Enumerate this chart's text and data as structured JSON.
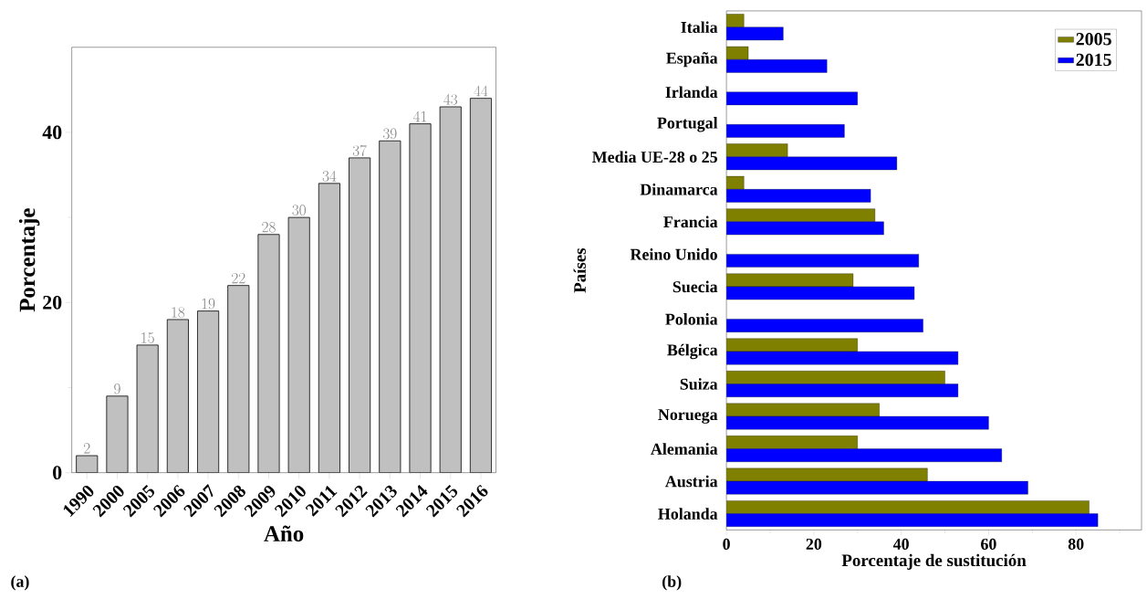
{
  "chart_data": [
    {
      "type": "bar",
      "xlabel": "Año",
      "ylabel": "Porcentaje",
      "categories": [
        "1990",
        "2000",
        "2005",
        "2006",
        "2007",
        "2008",
        "2009",
        "2010",
        "2011",
        "2012",
        "2013",
        "2014",
        "2015",
        "2016"
      ],
      "values": [
        2,
        9,
        15,
        18,
        19,
        22,
        28,
        30,
        34,
        37,
        39,
        41,
        43,
        44
      ],
      "color": "#c0c0c0",
      "data_labels": true,
      "grid": false,
      "legend": false,
      "ylim": [
        0,
        50
      ],
      "yticks": [
        0,
        {
          "value": 10,
          "label": null
        },
        20,
        {
          "value": 30,
          "label": null
        },
        40
      ],
      "annotations": [
        "(a)"
      ]
    },
    {
      "type": "bar",
      "orientation": "horizontal",
      "xlabel": "Porcentaje de sustitución",
      "ylabel": "Países",
      "categories": [
        "Italia",
        "España",
        "Irlanda",
        "Portugal",
        "Media UE-28 o 25",
        "Dinamarca",
        "Francia",
        "Reino Unido",
        "Suecia",
        "Polonia",
        "Bélgica",
        "Suiza",
        "Noruega",
        "Alemania",
        "Austria",
        "Holanda"
      ],
      "series": [
        {
          "name": "2005",
          "color": "#808000",
          "values": [
            4,
            5,
            null,
            null,
            14,
            4,
            34,
            null,
            29,
            null,
            30,
            50,
            35,
            30,
            46,
            83
          ]
        },
        {
          "name": "2015",
          "color": "#0000ff",
          "values": [
            13,
            23,
            30,
            27,
            39,
            33,
            36,
            44,
            43,
            45,
            53,
            53,
            60,
            63,
            69,
            85
          ]
        }
      ],
      "grid": false,
      "legend": "top right",
      "xlim": [
        0,
        95
      ],
      "xticks": [
        0,
        {
          "value": 10,
          "label": null
        },
        20,
        {
          "value": 30,
          "label": null
        },
        40,
        {
          "value": 50,
          "label": null
        },
        60,
        {
          "value": 70,
          "label": null
        },
        80,
        {
          "value": 90,
          "label": null
        }
      ],
      "annotations": [
        "(b)"
      ]
    }
  ]
}
